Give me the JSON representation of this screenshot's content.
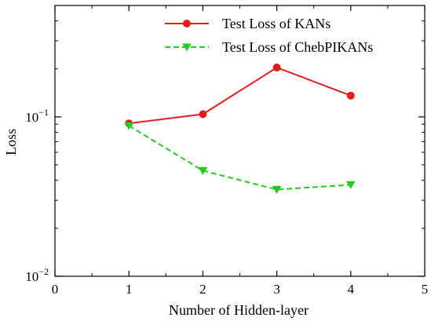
{
  "chart_data": {
    "type": "line",
    "title": "",
    "xlabel": "Number of Hidden-layer",
    "ylabel": "Loss",
    "xlim": [
      0,
      5
    ],
    "ylim": [
      0.01,
      0.5
    ],
    "yscale": "log",
    "grid": false,
    "legend_position": "top-right",
    "x_ticks": [
      0,
      1,
      2,
      3,
      4,
      5
    ],
    "x_tick_labels": [
      "0",
      "1",
      "2",
      "3",
      "4",
      "5"
    ],
    "y_ticks": [
      0.01,
      0.1
    ],
    "y_tick_labels": [
      {
        "base": "10",
        "exp": "−2"
      },
      {
        "base": "10",
        "exp": "−1"
      }
    ],
    "x": [
      1,
      2,
      3,
      4
    ],
    "series": [
      {
        "name": "Test Loss of KANs",
        "values": [
          0.091,
          0.104,
          0.204,
          0.136
        ],
        "color": "#e41a1c",
        "line_style": "solid",
        "marker": "circle"
      },
      {
        "name": "Test Loss of ChebPIKANs",
        "values": [
          0.088,
          0.046,
          0.035,
          0.0375
        ],
        "color": "#22cc22",
        "line_style": "dashed",
        "marker": "triangle-down"
      }
    ]
  }
}
